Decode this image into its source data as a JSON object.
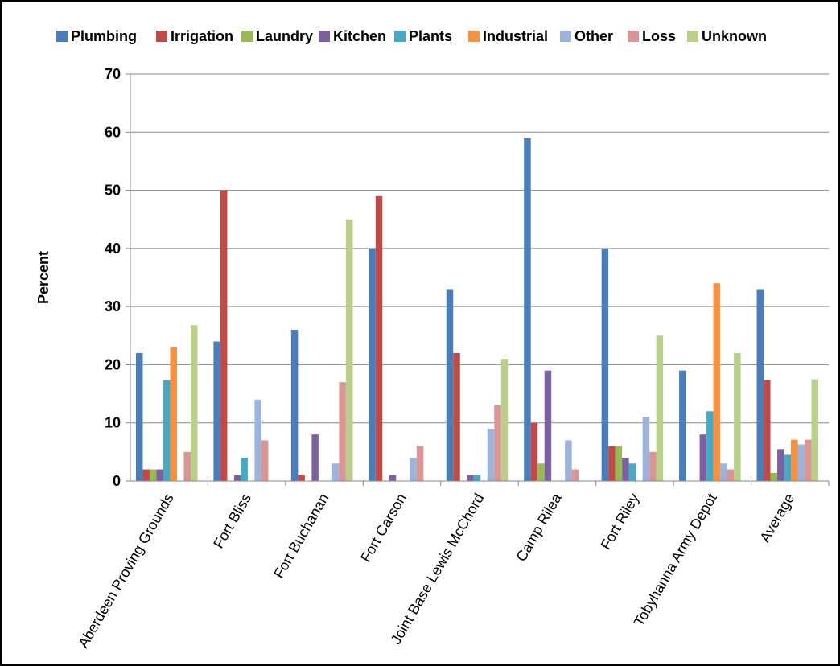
{
  "chart_data": {
    "type": "bar",
    "title": "",
    "xlabel": "",
    "ylabel": "Percent",
    "ylim": [
      0,
      70
    ],
    "yticks": [
      0,
      10,
      20,
      30,
      40,
      50,
      60,
      70
    ],
    "grid": true,
    "legend_position": "top",
    "categories": [
      "Aberdeen Proving Grounds",
      "Fort Bliss",
      "Fort Buchanan",
      "Fort Carson",
      "Joint Base Lewis McChord",
      "Camp Rilea",
      "Fort Riley",
      "Tobyhanna Army Depot",
      "Average"
    ],
    "series": [
      {
        "name": "Plumbing",
        "color": "#4a7ebb",
        "values": [
          22,
          24,
          26,
          40,
          33,
          59,
          40,
          19,
          33
        ]
      },
      {
        "name": "Irrigation",
        "color": "#be4b48",
        "values": [
          2,
          50,
          1,
          49,
          22,
          10,
          6,
          0,
          17.4
        ]
      },
      {
        "name": "Laundry",
        "color": "#98b954",
        "values": [
          2,
          0,
          0,
          0,
          0,
          3,
          6,
          0,
          1.4
        ]
      },
      {
        "name": "Kitchen",
        "color": "#7d60a0",
        "values": [
          2,
          1,
          8,
          1,
          1,
          19,
          4,
          8,
          5.5
        ]
      },
      {
        "name": "Plants",
        "color": "#46aac5",
        "values": [
          17.3,
          4,
          0,
          0,
          1,
          0,
          3,
          12,
          4.5
        ]
      },
      {
        "name": "Industrial",
        "color": "#f69240",
        "values": [
          23,
          0,
          0,
          0,
          0,
          0,
          0,
          34,
          7.1
        ]
      },
      {
        "name": "Other",
        "color": "#9cb4dc",
        "values": [
          0,
          14,
          3,
          4,
          9,
          7,
          11,
          3,
          6.3
        ]
      },
      {
        "name": "Loss",
        "color": "#d99694",
        "values": [
          5,
          7,
          17,
          6,
          13,
          2,
          5,
          2,
          7.1
        ]
      },
      {
        "name": "Unknown",
        "color": "#b9d08a",
        "values": [
          26.8,
          0,
          45,
          0,
          21,
          0,
          25,
          22,
          17.5
        ]
      }
    ]
  }
}
